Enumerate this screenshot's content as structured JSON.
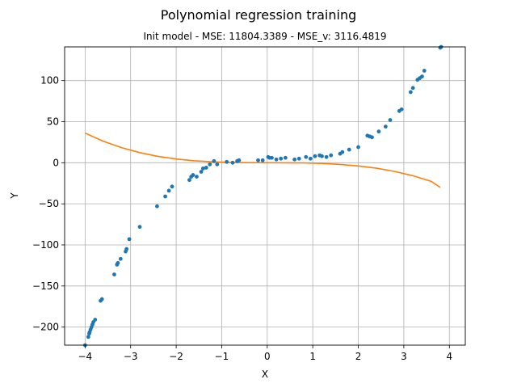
{
  "chart_data": {
    "type": "scatter",
    "title": "Polynomial regression training",
    "subtitle": "Init model - MSE: 11804.3389 - MSE_v: 3116.4819",
    "xlabel": "X",
    "ylabel": "Y",
    "xlim": [
      -4.45,
      4.35
    ],
    "ylim": [
      -222,
      141
    ],
    "xticks": [
      -4,
      -3,
      -2,
      -1,
      0,
      1,
      2,
      3,
      4
    ],
    "yticks": [
      -200,
      -150,
      -100,
      -50,
      0,
      50,
      100
    ],
    "grid": true,
    "colors": {
      "points": "#1f77b4",
      "curve": "#ff7f0e"
    },
    "series": [
      {
        "kind": "points",
        "x": [
          -4.0,
          -3.93,
          -3.91,
          -3.9,
          -3.88,
          -3.86,
          -3.84,
          -3.82,
          -3.78,
          -3.66,
          -3.63,
          -3.36,
          -3.3,
          -3.28,
          -3.22,
          -3.11,
          -3.09,
          -3.03,
          -2.8,
          -2.42,
          -2.24,
          -2.16,
          -2.09,
          -1.71,
          -1.67,
          -1.63,
          -1.55,
          -1.45,
          -1.41,
          -1.34,
          -1.26,
          -1.17,
          -1.1,
          -0.89,
          -0.76,
          -0.66,
          -0.62,
          -0.2,
          -0.1,
          0.02,
          0.05,
          0.1,
          0.2,
          0.3,
          0.4,
          0.6,
          0.7,
          0.85,
          0.95,
          1.05,
          1.15,
          1.2,
          1.3,
          1.4,
          1.6,
          1.65,
          1.8,
          2.0,
          2.2,
          2.25,
          2.3,
          2.45,
          2.6,
          2.7,
          2.9,
          2.95,
          3.15,
          3.2,
          3.3,
          3.35,
          3.4,
          3.45,
          3.8,
          3.82
        ],
        "y": [
          -222,
          -212,
          -208,
          -206,
          -203,
          -200,
          -197,
          -194,
          -191,
          -168,
          -166,
          -136,
          -124,
          -122,
          -117,
          -108,
          -105,
          -93,
          -78,
          -53,
          -41,
          -34,
          -29,
          -21,
          -17,
          -15,
          -17,
          -11,
          -7,
          -6,
          -2,
          2,
          -2,
          1,
          0,
          2,
          3,
          3,
          3,
          7,
          6,
          6,
          4,
          5,
          6,
          4,
          5,
          7,
          5,
          8,
          9,
          8,
          7,
          9,
          11,
          13,
          16,
          19,
          33,
          32,
          31,
          38,
          44,
          52,
          63,
          65,
          86,
          91,
          101,
          103,
          105,
          112,
          140,
          141
        ]
      },
      {
        "kind": "curve",
        "x": [
          -4.0,
          -3.6,
          -3.2,
          -2.8,
          -2.4,
          -2.0,
          -1.6,
          -1.2,
          -0.8,
          -0.4,
          0.0,
          0.4,
          0.8,
          1.2,
          1.6,
          2.0,
          2.4,
          2.8,
          3.2,
          3.6,
          3.8
        ],
        "y": [
          36,
          26.2,
          18.4,
          12.3,
          7.8,
          4.6,
          2.4,
          1.1,
          0.4,
          0.1,
          0.0,
          -0.1,
          -0.3,
          -0.9,
          -2.0,
          -3.9,
          -6.7,
          -10.6,
          -15.8,
          -22.6,
          -30
        ]
      }
    ]
  }
}
